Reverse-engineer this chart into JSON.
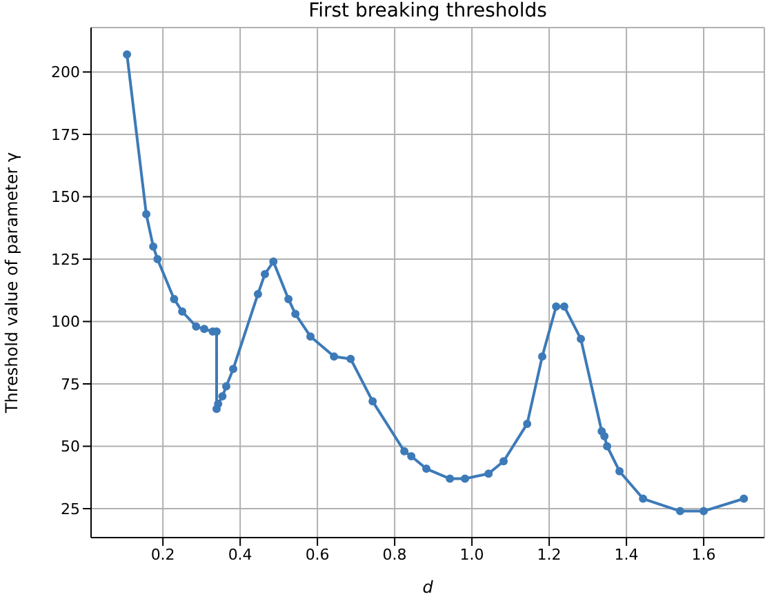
{
  "chart_data": {
    "type": "line",
    "title": "First breaking thresholds",
    "xlabel": "d",
    "ylabel": "Threshold value of parameter γ",
    "x": [
      0.107,
      0.157,
      0.175,
      0.186,
      0.229,
      0.25,
      0.286,
      0.307,
      0.329,
      0.339,
      0.339,
      0.343,
      0.354,
      0.364,
      0.382,
      0.446,
      0.464,
      0.486,
      0.525,
      0.543,
      0.582,
      0.643,
      0.686,
      0.743,
      0.825,
      0.843,
      0.882,
      0.943,
      0.982,
      1.043,
      1.082,
      1.143,
      1.182,
      1.218,
      1.239,
      1.282,
      1.336,
      1.343,
      1.35,
      1.382,
      1.443,
      1.539,
      1.6,
      1.704
    ],
    "series": [
      {
        "color": "#3d7ab8",
        "values": [
          207,
          143,
          130,
          125,
          109,
          104,
          98,
          97,
          96,
          96,
          65,
          67,
          70,
          74,
          81,
          111,
          119,
          124,
          109,
          103,
          94,
          86,
          85,
          68,
          48,
          46,
          41,
          37,
          37,
          39,
          44,
          59,
          86,
          106,
          106,
          93,
          56,
          54,
          50,
          40,
          29,
          24,
          24,
          29
        ]
      }
    ],
    "xlim": [
      0.014,
      1.757
    ],
    "ylim": [
      13.4,
      217.8
    ],
    "xticks": [
      0.2,
      0.4,
      0.6,
      0.8,
      {
        "value": 1,
        "label": "1.0"
      },
      1.2,
      1.4,
      1.6
    ],
    "yticks": [
      25,
      50,
      75,
      100,
      125,
      150,
      175,
      200
    ],
    "grid": true,
    "marker": "circle",
    "line_style": "solid",
    "legend": false
  }
}
